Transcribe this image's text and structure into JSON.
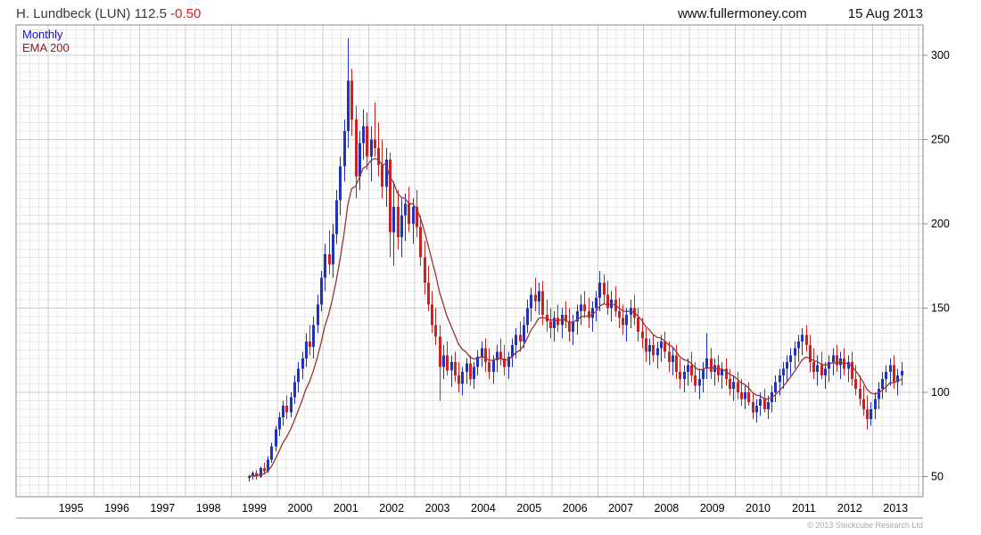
{
  "header": {
    "instrument": "H. Lundbeck (LUN)",
    "price": "112.5",
    "change": "-0.50",
    "website": "www.fullermoney.com",
    "date": "15 Aug 2013"
  },
  "legend": {
    "series": "Monthly",
    "overlay": "EMA 200"
  },
  "footer": {
    "copyright": "© 2013 Stockcube Research Ltd"
  },
  "colors": {
    "up": "#2233bb",
    "down": "#cc2222",
    "ema": "#993333",
    "grid_minor": "#e8e8e8",
    "grid_major": "#cccccc",
    "border": "#888888",
    "change_negative": "#cc2222"
  },
  "chart_data": {
    "type": "candlestick",
    "title": "H. Lundbeck (LUN) Monthly with EMA 200",
    "x_ticks": [
      1995,
      1996,
      1997,
      1998,
      1999,
      2000,
      2001,
      2002,
      2003,
      2004,
      2005,
      2006,
      2007,
      2008,
      2009,
      2010,
      2011,
      2012,
      2013
    ],
    "y_ticks": [
      50,
      100,
      150,
      200,
      250,
      300
    ],
    "x_range": [
      1994.3,
      2014.1
    ],
    "y_range": [
      38,
      318
    ],
    "ema_period_days": 200,
    "candles": [
      [
        "1999-05",
        49,
        51,
        47,
        50
      ],
      [
        "1999-06",
        50,
        53,
        48,
        52
      ],
      [
        "1999-07",
        52,
        54,
        48,
        50
      ],
      [
        "1999-08",
        50,
        56,
        49,
        55
      ],
      [
        "1999-09",
        55,
        58,
        51,
        53
      ],
      [
        "1999-10",
        53,
        62,
        52,
        60
      ],
      [
        "1999-11",
        60,
        70,
        58,
        68
      ],
      [
        "1999-12",
        68,
        80,
        65,
        78
      ],
      [
        "2000-01",
        78,
        88,
        74,
        85
      ],
      [
        "2000-02",
        85,
        95,
        80,
        92
      ],
      [
        "2000-03",
        92,
        98,
        84,
        88
      ],
      [
        "2000-04",
        88,
        100,
        85,
        97
      ],
      [
        "2000-05",
        97,
        110,
        93,
        106
      ],
      [
        "2000-06",
        106,
        118,
        100,
        114
      ],
      [
        "2000-07",
        114,
        124,
        108,
        120
      ],
      [
        "2000-08",
        120,
        135,
        115,
        130
      ],
      [
        "2000-09",
        130,
        140,
        122,
        127
      ],
      [
        "2000-10",
        127,
        145,
        120,
        140
      ],
      [
        "2000-11",
        140,
        158,
        135,
        152
      ],
      [
        "2000-12",
        152,
        172,
        148,
        168
      ],
      [
        "2001-01",
        168,
        188,
        160,
        182
      ],
      [
        "2001-02",
        182,
        196,
        170,
        176
      ],
      [
        "2001-03",
        176,
        200,
        168,
        194
      ],
      [
        "2001-04",
        194,
        220,
        188,
        214
      ],
      [
        "2001-05",
        214,
        240,
        205,
        234
      ],
      [
        "2001-06",
        234,
        262,
        225,
        255
      ],
      [
        "2001-07",
        255,
        310,
        245,
        285
      ],
      [
        "2001-08",
        285,
        292,
        252,
        262
      ],
      [
        "2001-09",
        262,
        270,
        215,
        228
      ],
      [
        "2001-10",
        228,
        255,
        220,
        248
      ],
      [
        "2001-11",
        248,
        268,
        238,
        258
      ],
      [
        "2001-12",
        258,
        266,
        232,
        240
      ],
      [
        "2002-01",
        240,
        258,
        225,
        250
      ],
      [
        "2002-02",
        250,
        272,
        240,
        245
      ],
      [
        "2002-03",
        245,
        260,
        228,
        235
      ],
      [
        "2002-04",
        235,
        250,
        215,
        222
      ],
      [
        "2002-05",
        222,
        245,
        210,
        238
      ],
      [
        "2002-06",
        238,
        242,
        180,
        195
      ],
      [
        "2002-07",
        195,
        225,
        175,
        210
      ],
      [
        "2002-08",
        210,
        220,
        185,
        192
      ],
      [
        "2002-09",
        192,
        215,
        180,
        205
      ],
      [
        "2002-10",
        205,
        218,
        190,
        212
      ],
      [
        "2002-11",
        212,
        222,
        195,
        200
      ],
      [
        "2002-12",
        200,
        215,
        188,
        210
      ],
      [
        "2003-01",
        210,
        220,
        192,
        198
      ],
      [
        "2003-02",
        198,
        205,
        175,
        180
      ],
      [
        "2003-03",
        180,
        190,
        158,
        165
      ],
      [
        "2003-04",
        165,
        175,
        148,
        152
      ],
      [
        "2003-05",
        152,
        160,
        135,
        140
      ],
      [
        "2003-06",
        140,
        150,
        128,
        133
      ],
      [
        "2003-07",
        133,
        140,
        95,
        115
      ],
      [
        "2003-08",
        115,
        128,
        108,
        122
      ],
      [
        "2003-09",
        122,
        130,
        110,
        113
      ],
      [
        "2003-10",
        113,
        122,
        103,
        118
      ],
      [
        "2003-11",
        118,
        124,
        106,
        110
      ],
      [
        "2003-12",
        110,
        118,
        100,
        105
      ],
      [
        "2004-01",
        105,
        115,
        98,
        112
      ],
      [
        "2004-02",
        112,
        120,
        105,
        117
      ],
      [
        "2004-03",
        117,
        122,
        104,
        108
      ],
      [
        "2004-04",
        108,
        118,
        102,
        115
      ],
      [
        "2004-05",
        115,
        125,
        110,
        121
      ],
      [
        "2004-06",
        121,
        130,
        115,
        126
      ],
      [
        "2004-07",
        126,
        132,
        112,
        118
      ],
      [
        "2004-08",
        118,
        126,
        108,
        112
      ],
      [
        "2004-09",
        112,
        122,
        105,
        119
      ],
      [
        "2004-10",
        119,
        128,
        112,
        124
      ],
      [
        "2004-11",
        124,
        132,
        116,
        120
      ],
      [
        "2004-12",
        120,
        128,
        110,
        115
      ],
      [
        "2005-01",
        115,
        124,
        108,
        121
      ],
      [
        "2005-02",
        121,
        132,
        115,
        128
      ],
      [
        "2005-03",
        128,
        138,
        120,
        134
      ],
      [
        "2005-04",
        134,
        142,
        124,
        130
      ],
      [
        "2005-05",
        130,
        145,
        126,
        140
      ],
      [
        "2005-06",
        140,
        155,
        135,
        150
      ],
      [
        "2005-07",
        150,
        162,
        142,
        158
      ],
      [
        "2005-08",
        158,
        168,
        148,
        154
      ],
      [
        "2005-09",
        154,
        165,
        146,
        160
      ],
      [
        "2005-10",
        160,
        166,
        140,
        146
      ],
      [
        "2005-11",
        146,
        155,
        136,
        142
      ],
      [
        "2005-12",
        142,
        150,
        132,
        138
      ],
      [
        "2006-01",
        138,
        148,
        130,
        144
      ],
      [
        "2006-02",
        144,
        152,
        136,
        140
      ],
      [
        "2006-03",
        140,
        150,
        132,
        146
      ],
      [
        "2006-04",
        146,
        154,
        138,
        142
      ],
      [
        "2006-05",
        142,
        150,
        130,
        136
      ],
      [
        "2006-06",
        136,
        146,
        128,
        142
      ],
      [
        "2006-07",
        142,
        152,
        134,
        148
      ],
      [
        "2006-08",
        148,
        158,
        140,
        152
      ],
      [
        "2006-09",
        152,
        160,
        144,
        148
      ],
      [
        "2006-10",
        148,
        156,
        138,
        144
      ],
      [
        "2006-11",
        144,
        154,
        136,
        150
      ],
      [
        "2006-12",
        150,
        160,
        142,
        156
      ],
      [
        "2007-01",
        156,
        172,
        148,
        165
      ],
      [
        "2007-02",
        165,
        170,
        152,
        158
      ],
      [
        "2007-03",
        158,
        166,
        146,
        150
      ],
      [
        "2007-04",
        150,
        160,
        142,
        155
      ],
      [
        "2007-05",
        155,
        163,
        145,
        148
      ],
      [
        "2007-06",
        148,
        156,
        138,
        144
      ],
      [
        "2007-07",
        144,
        152,
        134,
        140
      ],
      [
        "2007-08",
        140,
        150,
        130,
        146
      ],
      [
        "2007-09",
        146,
        155,
        138,
        150
      ],
      [
        "2007-10",
        150,
        158,
        140,
        144
      ],
      [
        "2007-11",
        144,
        150,
        130,
        136
      ],
      [
        "2007-12",
        136,
        144,
        126,
        132
      ],
      [
        "2008-01",
        132,
        138,
        118,
        124
      ],
      [
        "2008-02",
        124,
        132,
        116,
        128
      ],
      [
        "2008-03",
        128,
        134,
        118,
        122
      ],
      [
        "2008-04",
        122,
        130,
        114,
        126
      ],
      [
        "2008-05",
        126,
        134,
        118,
        130
      ],
      [
        "2008-06",
        130,
        136,
        120,
        124
      ],
      [
        "2008-07",
        124,
        130,
        112,
        118
      ],
      [
        "2008-08",
        118,
        126,
        110,
        122
      ],
      [
        "2008-09",
        122,
        128,
        108,
        112
      ],
      [
        "2008-10",
        112,
        120,
        102,
        108
      ],
      [
        "2008-11",
        108,
        116,
        100,
        112
      ],
      [
        "2008-12",
        112,
        120,
        104,
        116
      ],
      [
        "2009-01",
        116,
        124,
        106,
        110
      ],
      [
        "2009-02",
        110,
        118,
        100,
        104
      ],
      [
        "2009-03",
        104,
        114,
        96,
        108
      ],
      [
        "2009-04",
        108,
        118,
        100,
        114
      ],
      [
        "2009-05",
        114,
        135,
        108,
        120
      ],
      [
        "2009-06",
        120,
        126,
        108,
        112
      ],
      [
        "2009-07",
        112,
        120,
        104,
        116
      ],
      [
        "2009-08",
        116,
        122,
        106,
        110
      ],
      [
        "2009-09",
        110,
        118,
        102,
        114
      ],
      [
        "2009-10",
        114,
        120,
        104,
        108
      ],
      [
        "2009-11",
        108,
        114,
        98,
        102
      ],
      [
        "2009-12",
        102,
        110,
        95,
        106
      ],
      [
        "2010-01",
        106,
        112,
        96,
        100
      ],
      [
        "2010-02",
        100,
        108,
        92,
        96
      ],
      [
        "2010-03",
        96,
        104,
        90,
        100
      ],
      [
        "2010-04",
        100,
        106,
        92,
        94
      ],
      [
        "2010-05",
        94,
        100,
        84,
        88
      ],
      [
        "2010-06",
        88,
        96,
        82,
        92
      ],
      [
        "2010-07",
        92,
        100,
        86,
        96
      ],
      [
        "2010-08",
        96,
        102,
        88,
        90
      ],
      [
        "2010-09",
        90,
        98,
        84,
        94
      ],
      [
        "2010-10",
        94,
        104,
        88,
        100
      ],
      [
        "2010-11",
        100,
        110,
        94,
        106
      ],
      [
        "2010-12",
        106,
        114,
        98,
        110
      ],
      [
        "2011-01",
        110,
        118,
        102,
        114
      ],
      [
        "2011-02",
        114,
        122,
        106,
        118
      ],
      [
        "2011-03",
        118,
        126,
        110,
        122
      ],
      [
        "2011-04",
        122,
        130,
        114,
        126
      ],
      [
        "2011-05",
        126,
        134,
        118,
        130
      ],
      [
        "2011-06",
        130,
        138,
        122,
        134
      ],
      [
        "2011-07",
        134,
        140,
        124,
        128
      ],
      [
        "2011-08",
        128,
        134,
        112,
        118
      ],
      [
        "2011-09",
        118,
        126,
        108,
        112
      ],
      [
        "2011-10",
        112,
        122,
        104,
        116
      ],
      [
        "2011-11",
        116,
        124,
        108,
        110
      ],
      [
        "2011-12",
        110,
        118,
        102,
        114
      ],
      [
        "2012-01",
        114,
        122,
        106,
        118
      ],
      [
        "2012-02",
        118,
        126,
        110,
        122
      ],
      [
        "2012-03",
        122,
        128,
        112,
        116
      ],
      [
        "2012-04",
        116,
        124,
        108,
        120
      ],
      [
        "2012-05",
        120,
        126,
        110,
        114
      ],
      [
        "2012-06",
        114,
        122,
        106,
        118
      ],
      [
        "2012-07",
        118,
        124,
        104,
        108
      ],
      [
        "2012-08",
        108,
        116,
        98,
        102
      ],
      [
        "2012-09",
        102,
        110,
        92,
        96
      ],
      [
        "2012-10",
        96,
        104,
        86,
        90
      ],
      [
        "2012-11",
        90,
        98,
        78,
        84
      ],
      [
        "2012-12",
        84,
        94,
        80,
        90
      ],
      [
        "2013-01",
        90,
        100,
        84,
        96
      ],
      [
        "2013-02",
        96,
        106,
        90,
        102
      ],
      [
        "2013-03",
        102,
        112,
        96,
        108
      ],
      [
        "2013-04",
        108,
        116,
        100,
        112
      ],
      [
        "2013-05",
        112,
        120,
        104,
        116
      ],
      [
        "2013-06",
        116,
        122,
        102,
        106
      ],
      [
        "2013-07",
        106,
        114,
        98,
        110
      ],
      [
        "2013-08",
        110,
        118,
        104,
        112.5
      ]
    ]
  }
}
